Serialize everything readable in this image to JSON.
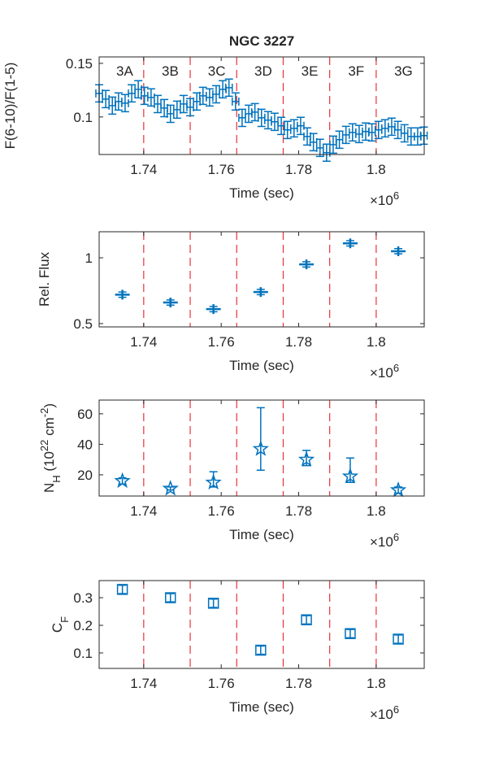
{
  "chart_data": [
    {
      "type": "errorbar",
      "title": "NGC 3227",
      "ylabel": "F(6-10)/F(1-5)",
      "xlabel": "Time (sec)",
      "x_exponent": [
        "×10",
        "6"
      ],
      "segments": [
        "3A",
        "3B",
        "3C",
        "3D",
        "3E",
        "3F",
        "3G"
      ],
      "boundaries": [
        1740000,
        1752000,
        1764000,
        1776000,
        1788000,
        1800000
      ],
      "boundary_color": "#e8323c",
      "marker": "none",
      "color": "#0072bd",
      "x": [
        1728500,
        1730200,
        1731900,
        1733500,
        1735200,
        1736900,
        1738600,
        1740200,
        1741900,
        1743600,
        1745300,
        1746900,
        1748600,
        1750300,
        1752000,
        1753700,
        1755300,
        1757000,
        1758700,
        1760400,
        1762000,
        1763700,
        1765400,
        1767100,
        1768700,
        1770400,
        1772100,
        1773800,
        1775500,
        1777100,
        1778800,
        1780500,
        1782200,
        1783800,
        1785500,
        1787200,
        1788900,
        1790500,
        1792200,
        1793900,
        1795600,
        1797300,
        1798900,
        1800600,
        1802300,
        1804000,
        1805600,
        1807300,
        1809000,
        1810700,
        1812300
      ],
      "values": [
        0.122,
        0.1167,
        0.1106,
        0.1144,
        0.1129,
        0.122,
        0.1258,
        0.1197,
        0.1182,
        0.1121,
        0.1083,
        0.103,
        0.1068,
        0.1121,
        0.1091,
        0.1144,
        0.1197,
        0.1182,
        0.1212,
        0.1258,
        0.1273,
        0.1144,
        0.0992,
        0.103,
        0.1045,
        0.0992,
        0.097,
        0.0955,
        0.0917,
        0.0879,
        0.0894,
        0.0917,
        0.0818,
        0.0765,
        0.0712,
        0.0667,
        0.0742,
        0.0788,
        0.0833,
        0.0856,
        0.0841,
        0.0864,
        0.0856,
        0.0879,
        0.0894,
        0.0909,
        0.0879,
        0.0848,
        0.0818,
        0.0818,
        0.0826
      ],
      "yerr": 0.008,
      "xerr": 850,
      "xlim": [
        1728500,
        1812400
      ],
      "ylim": [
        0.065,
        0.156
      ],
      "xticks": [
        {
          "value": 1740000,
          "label": "1.74"
        },
        {
          "value": 1760000,
          "label": "1.76"
        },
        {
          "value": 1780000,
          "label": "1.78"
        },
        {
          "value": 1800000,
          "label": "1.8"
        }
      ],
      "yticks": [
        0.1,
        0.15
      ]
    },
    {
      "type": "errorbar",
      "ylabel": "Rel. Flux",
      "xlabel": "Time (sec)",
      "x_exponent": [
        "×10",
        "6"
      ],
      "boundaries": [
        1740000,
        1752000,
        1764000,
        1776000,
        1788000,
        1800000
      ],
      "boundary_color": "#e8323c",
      "marker": "plus",
      "color": "#0072bd",
      "x": [
        1734500,
        1746900,
        1758000,
        1770200,
        1782000,
        1793300,
        1805700
      ],
      "values": [
        0.72,
        0.66,
        0.61,
        0.74,
        0.95,
        1.11,
        1.05
      ],
      "yerr": 0.02,
      "xlim": [
        1728500,
        1812400
      ],
      "ylim": [
        0.475,
        1.198
      ],
      "xticks": [
        {
          "value": 1740000,
          "label": "1.74"
        },
        {
          "value": 1760000,
          "label": "1.76"
        },
        {
          "value": 1780000,
          "label": "1.78"
        },
        {
          "value": 1800000,
          "label": "1.8"
        }
      ],
      "yticks": [
        0.5,
        1
      ]
    },
    {
      "type": "errorbar",
      "ylabel": [
        "N",
        "H",
        " (10",
        "22",
        " cm",
        "-2",
        ")"
      ],
      "xlabel": "Time (sec)",
      "x_exponent": [
        "×10",
        "6"
      ],
      "boundaries": [
        1740000,
        1752000,
        1764000,
        1776000,
        1788000,
        1800000
      ],
      "boundary_color": "#e8323c",
      "marker": "pentagram",
      "color": "#0072bd",
      "x": [
        1734500,
        1746900,
        1758000,
        1770200,
        1782000,
        1793300,
        1805700
      ],
      "values": [
        16,
        11,
        15,
        37,
        30,
        19,
        10
      ],
      "yerr_minus": [
        2,
        1,
        3,
        14,
        4,
        4,
        2
      ],
      "yerr_plus": [
        2,
        1,
        7,
        27,
        6,
        12,
        2
      ],
      "xlim": [
        1728500,
        1812400
      ],
      "ylim": [
        6.1,
        69
      ],
      "xticks": [
        {
          "value": 1740000,
          "label": "1.74"
        },
        {
          "value": 1760000,
          "label": "1.76"
        },
        {
          "value": 1780000,
          "label": "1.78"
        },
        {
          "value": 1800000,
          "label": "1.8"
        }
      ],
      "yticks": [
        20,
        40,
        60
      ]
    },
    {
      "type": "errorbar",
      "ylabel": [
        "C",
        "F"
      ],
      "xlabel": "Time (sec)",
      "x_exponent": [
        "×10",
        "6"
      ],
      "boundaries": [
        1740000,
        1752000,
        1764000,
        1776000,
        1788000,
        1800000
      ],
      "boundary_color": "#e8323c",
      "marker": "square",
      "color": "#0072bd",
      "x": [
        1734500,
        1746900,
        1758000,
        1770200,
        1782000,
        1793300,
        1805700
      ],
      "values": [
        0.33,
        0.3,
        0.28,
        0.11,
        0.22,
        0.17,
        0.15
      ],
      "yerr": 0.015,
      "xlim": [
        1728500,
        1812400
      ],
      "ylim": [
        0.044,
        0.362
      ],
      "xticks": [
        {
          "value": 1740000,
          "label": "1.74"
        },
        {
          "value": 1760000,
          "label": "1.76"
        },
        {
          "value": 1780000,
          "label": "1.78"
        },
        {
          "value": 1800000,
          "label": "1.8"
        }
      ],
      "yticks": [
        0.1,
        0.2,
        0.3
      ]
    }
  ]
}
